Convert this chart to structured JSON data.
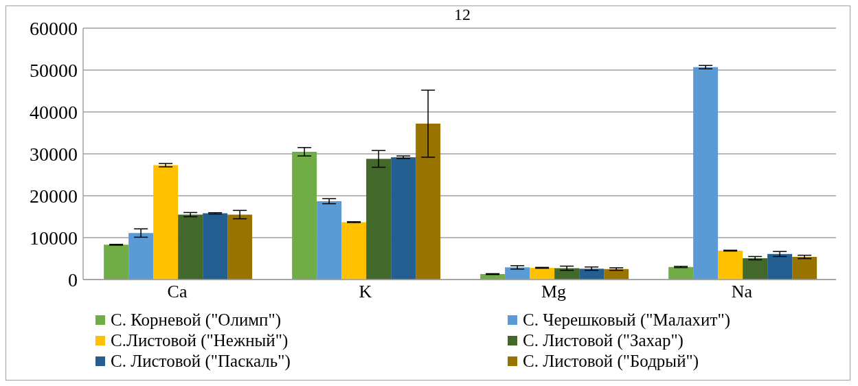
{
  "chart_data": {
    "type": "bar",
    "title": "12",
    "categories": [
      "Ca",
      "K",
      "Mg",
      "Na"
    ],
    "series": [
      {
        "name": "С. Корневой (\"Олимп\")",
        "color": "#70ad47",
        "values": [
          8300,
          30500,
          1300,
          3000
        ],
        "errors": [
          100,
          1000,
          100,
          150
        ]
      },
      {
        "name": "С. Черешковый (\"Малахит\")",
        "color": "#5b9bd5",
        "values": [
          11100,
          18700,
          2900,
          50700
        ],
        "errors": [
          1000,
          600,
          400,
          400
        ]
      },
      {
        "name": "С.Листовой (\"Нежный\")",
        "color": "#ffc000",
        "values": [
          27300,
          13700,
          2800,
          6900
        ],
        "errors": [
          400,
          100,
          100,
          100
        ]
      },
      {
        "name": "С. Листовой (\"Захар\")",
        "color": "#43682b",
        "values": [
          15500,
          28800,
          2700,
          5100
        ],
        "errors": [
          500,
          2000,
          500,
          400
        ]
      },
      {
        "name": "С. Листовой (\"Паскаль\")",
        "color": "#255e91",
        "values": [
          15800,
          29200,
          2600,
          6100
        ],
        "errors": [
          150,
          300,
          400,
          600
        ]
      },
      {
        "name": "С. Листовой (\"Бодрый\")",
        "color": "#997300",
        "values": [
          15500,
          37200,
          2500,
          5400
        ],
        "errors": [
          1000,
          8000,
          300,
          400
        ]
      }
    ],
    "ylim": [
      0,
      60000
    ],
    "yticks": [
      0,
      10000,
      20000,
      30000,
      40000,
      50000,
      60000
    ],
    "grid": "y",
    "legend": "bottom"
  }
}
